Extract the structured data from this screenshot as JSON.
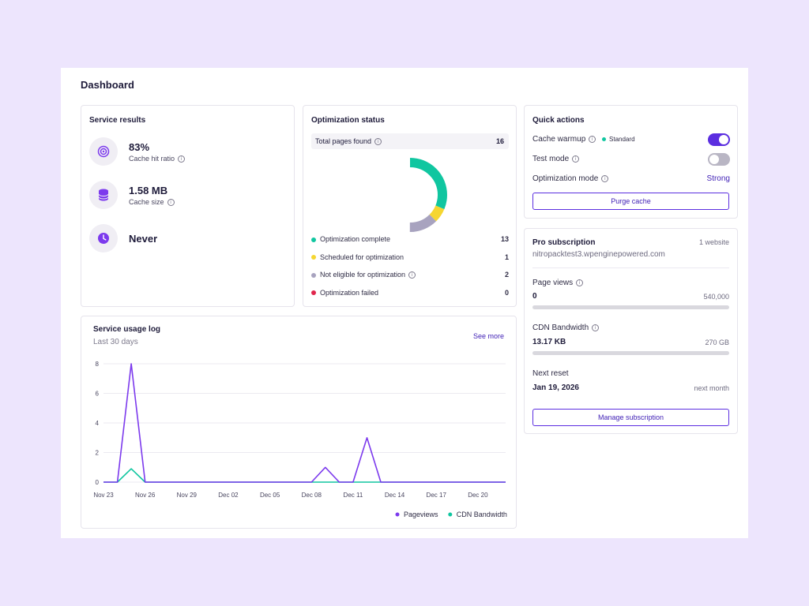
{
  "page": {
    "title": "Dashboard"
  },
  "service_results": {
    "title": "Service results",
    "items": [
      {
        "value": "83%",
        "label": "Cache hit ratio",
        "icon": "target-icon"
      },
      {
        "value": "1.58 MB",
        "label": "Cache size",
        "icon": "database-icon"
      },
      {
        "value": "Never",
        "label": "",
        "icon": "clock-icon"
      }
    ]
  },
  "optimization_status": {
    "title": "Optimization status",
    "total_label": "Total pages found",
    "total_value": "16",
    "legend": [
      {
        "label": "Optimization complete",
        "count": "13",
        "color": "#10c6a0"
      },
      {
        "label": "Scheduled for optimization",
        "count": "1",
        "color": "#f5d631"
      },
      {
        "label": "Not eligible for optimization",
        "count": "2",
        "color": "#a8a3bf"
      },
      {
        "label": "Optimization failed",
        "count": "0",
        "color": "#e0264c"
      }
    ]
  },
  "quick_actions": {
    "title": "Quick actions",
    "cache_warmup_label": "Cache warmup",
    "cache_warmup_badge": "Standard",
    "cache_warmup_on": true,
    "test_mode_label": "Test mode",
    "test_mode_on": false,
    "optimization_mode_label": "Optimization mode",
    "optimization_mode_value": "Strong",
    "purge_button": "Purge cache"
  },
  "subscription": {
    "plan": "Pro subscription",
    "websites": "1 website",
    "domain": "nitropacktest3.wpenginepowered.com",
    "page_views_label": "Page views",
    "page_views_value": "0",
    "page_views_limit": "540,000",
    "page_views_fraction": 0,
    "cdn_label": "CDN Bandwidth",
    "cdn_value": "13.17 KB",
    "cdn_limit": "270 GB",
    "cdn_fraction": 0,
    "next_reset_label": "Next reset",
    "next_reset_value": "Jan 19, 2026",
    "next_reset_note": "next month",
    "manage_button": "Manage subscription"
  },
  "usage_log": {
    "title": "Service usage log",
    "subtitle": "Last 30 days",
    "see_more": "See more"
  },
  "chart_data": [
    {
      "type": "pie",
      "title": "",
      "categories": [
        "Optimization complete",
        "Scheduled for optimization",
        "Not eligible for optimization",
        "Optimization failed"
      ],
      "values": [
        13,
        1,
        2,
        0
      ],
      "colors": [
        "#10c6a0",
        "#f5d631",
        "#a8a3bf",
        "#e0264c"
      ]
    },
    {
      "type": "line",
      "title": "",
      "xlabel": "",
      "ylabel": "",
      "x": [
        "Nov 23",
        "Nov 24",
        "Nov 25",
        "Nov 26",
        "Nov 27",
        "Nov 28",
        "Nov 29",
        "Nov 30",
        "Dec 01",
        "Dec 02",
        "Dec 03",
        "Dec 04",
        "Dec 05",
        "Dec 06",
        "Dec 07",
        "Dec 08",
        "Dec 09",
        "Dec 10",
        "Dec 11",
        "Dec 12",
        "Dec 13",
        "Dec 14",
        "Dec 15",
        "Dec 16",
        "Dec 17",
        "Dec 18",
        "Dec 19",
        "Dec 20",
        "Dec 21",
        "Dec 22"
      ],
      "tick_labels": [
        "Nov 23",
        "Nov 26",
        "Nov 29",
        "Dec 02",
        "Dec 05",
        "Dec 08",
        "Dec 11",
        "Dec 14",
        "Dec 17",
        "Dec 20"
      ],
      "yticks": [
        0,
        2,
        4,
        6,
        8
      ],
      "ylim": [
        0,
        8
      ],
      "grid": true,
      "legend_position": "bottom-right",
      "series": [
        {
          "name": "Pageviews",
          "color": "#7c3aed",
          "values": [
            0,
            0,
            8,
            0,
            0,
            0,
            0,
            0,
            0,
            0,
            0,
            0,
            0,
            0,
            0,
            0,
            1,
            0,
            0,
            3,
            0,
            0,
            0,
            0,
            0,
            0,
            0,
            0,
            0,
            0
          ]
        },
        {
          "name": "CDN Bandwidth",
          "color": "#10c6a0",
          "values": [
            0,
            0,
            0.9,
            0,
            0,
            0,
            0,
            0,
            0,
            0,
            0,
            0,
            0,
            0,
            0,
            0,
            0,
            0,
            0,
            0,
            0,
            0,
            0,
            0,
            0,
            0,
            0,
            0,
            0,
            0
          ]
        }
      ]
    }
  ]
}
